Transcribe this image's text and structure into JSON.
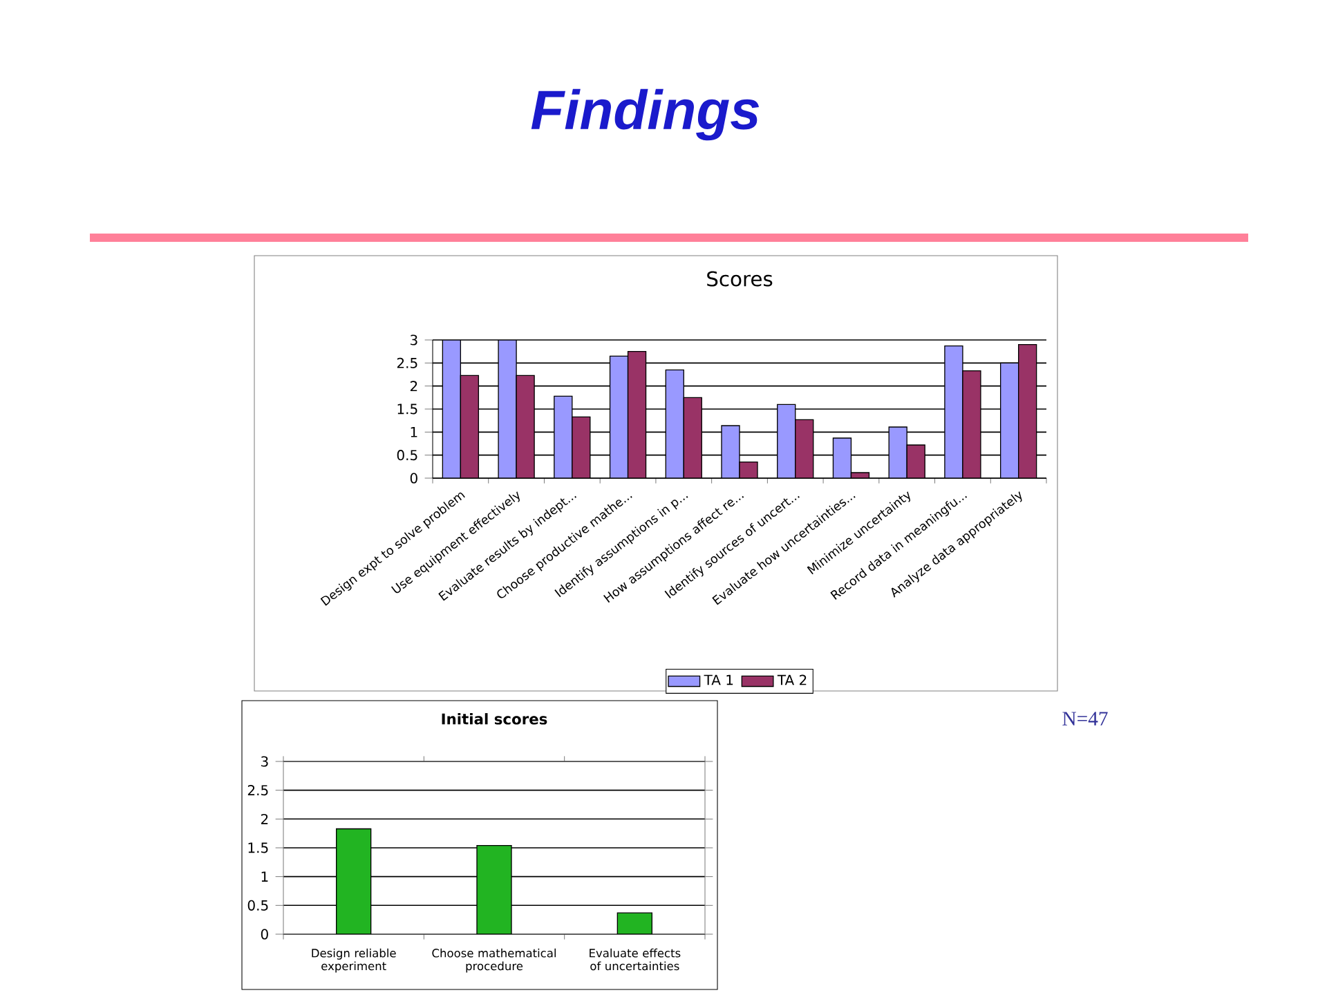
{
  "chart_data": [
    {
      "type": "other",
      "title": "Findings",
      "annotations": [
        "N=47"
      ]
    },
    {
      "type": "bar",
      "title": "Scores",
      "categories": [
        "Design expt to solve problem",
        "Use equipment effectively",
        "Evaluate results by indept...",
        "Choose productive mathe...",
        "Identify assumptions in p...",
        "How  assumptions affect re...",
        "Identify sources of uncert...",
        "Evaluate how  uncertainties...",
        "Minimize uncertainty",
        "Record data in meaningfu...",
        "Analyze data appropriately"
      ],
      "series": [
        {
          "name": "TA 1",
          "color": "#9999ff",
          "values": [
            3,
            3,
            1.78,
            2.65,
            2.35,
            1.14,
            1.6,
            0.87,
            1.11,
            2.87,
            2.5
          ]
        },
        {
          "name": "TA 2",
          "color": "#993366",
          "values": [
            2.23,
            2.23,
            1.33,
            2.75,
            1.75,
            0.35,
            1.27,
            0.12,
            0.72,
            2.33,
            2.9
          ]
        }
      ],
      "ylim": [
        0,
        3
      ],
      "yticks": [
        0,
        0.5,
        1,
        1.5,
        2,
        2.5,
        3
      ],
      "grid": "y",
      "legend": "bottom"
    },
    {
      "type": "bar",
      "title": "Initial scores",
      "categories": [
        "Design reliable experiment",
        "Choose mathematical procedure",
        "Evaluate effects of uncertainties"
      ],
      "values": [
        1.83,
        1.54,
        0.37
      ],
      "color": "#22b422",
      "ylim": [
        0,
        3
      ],
      "yticks": [
        0,
        0.5,
        1,
        1.5,
        2,
        2.5,
        3
      ],
      "grid": "y"
    }
  ]
}
